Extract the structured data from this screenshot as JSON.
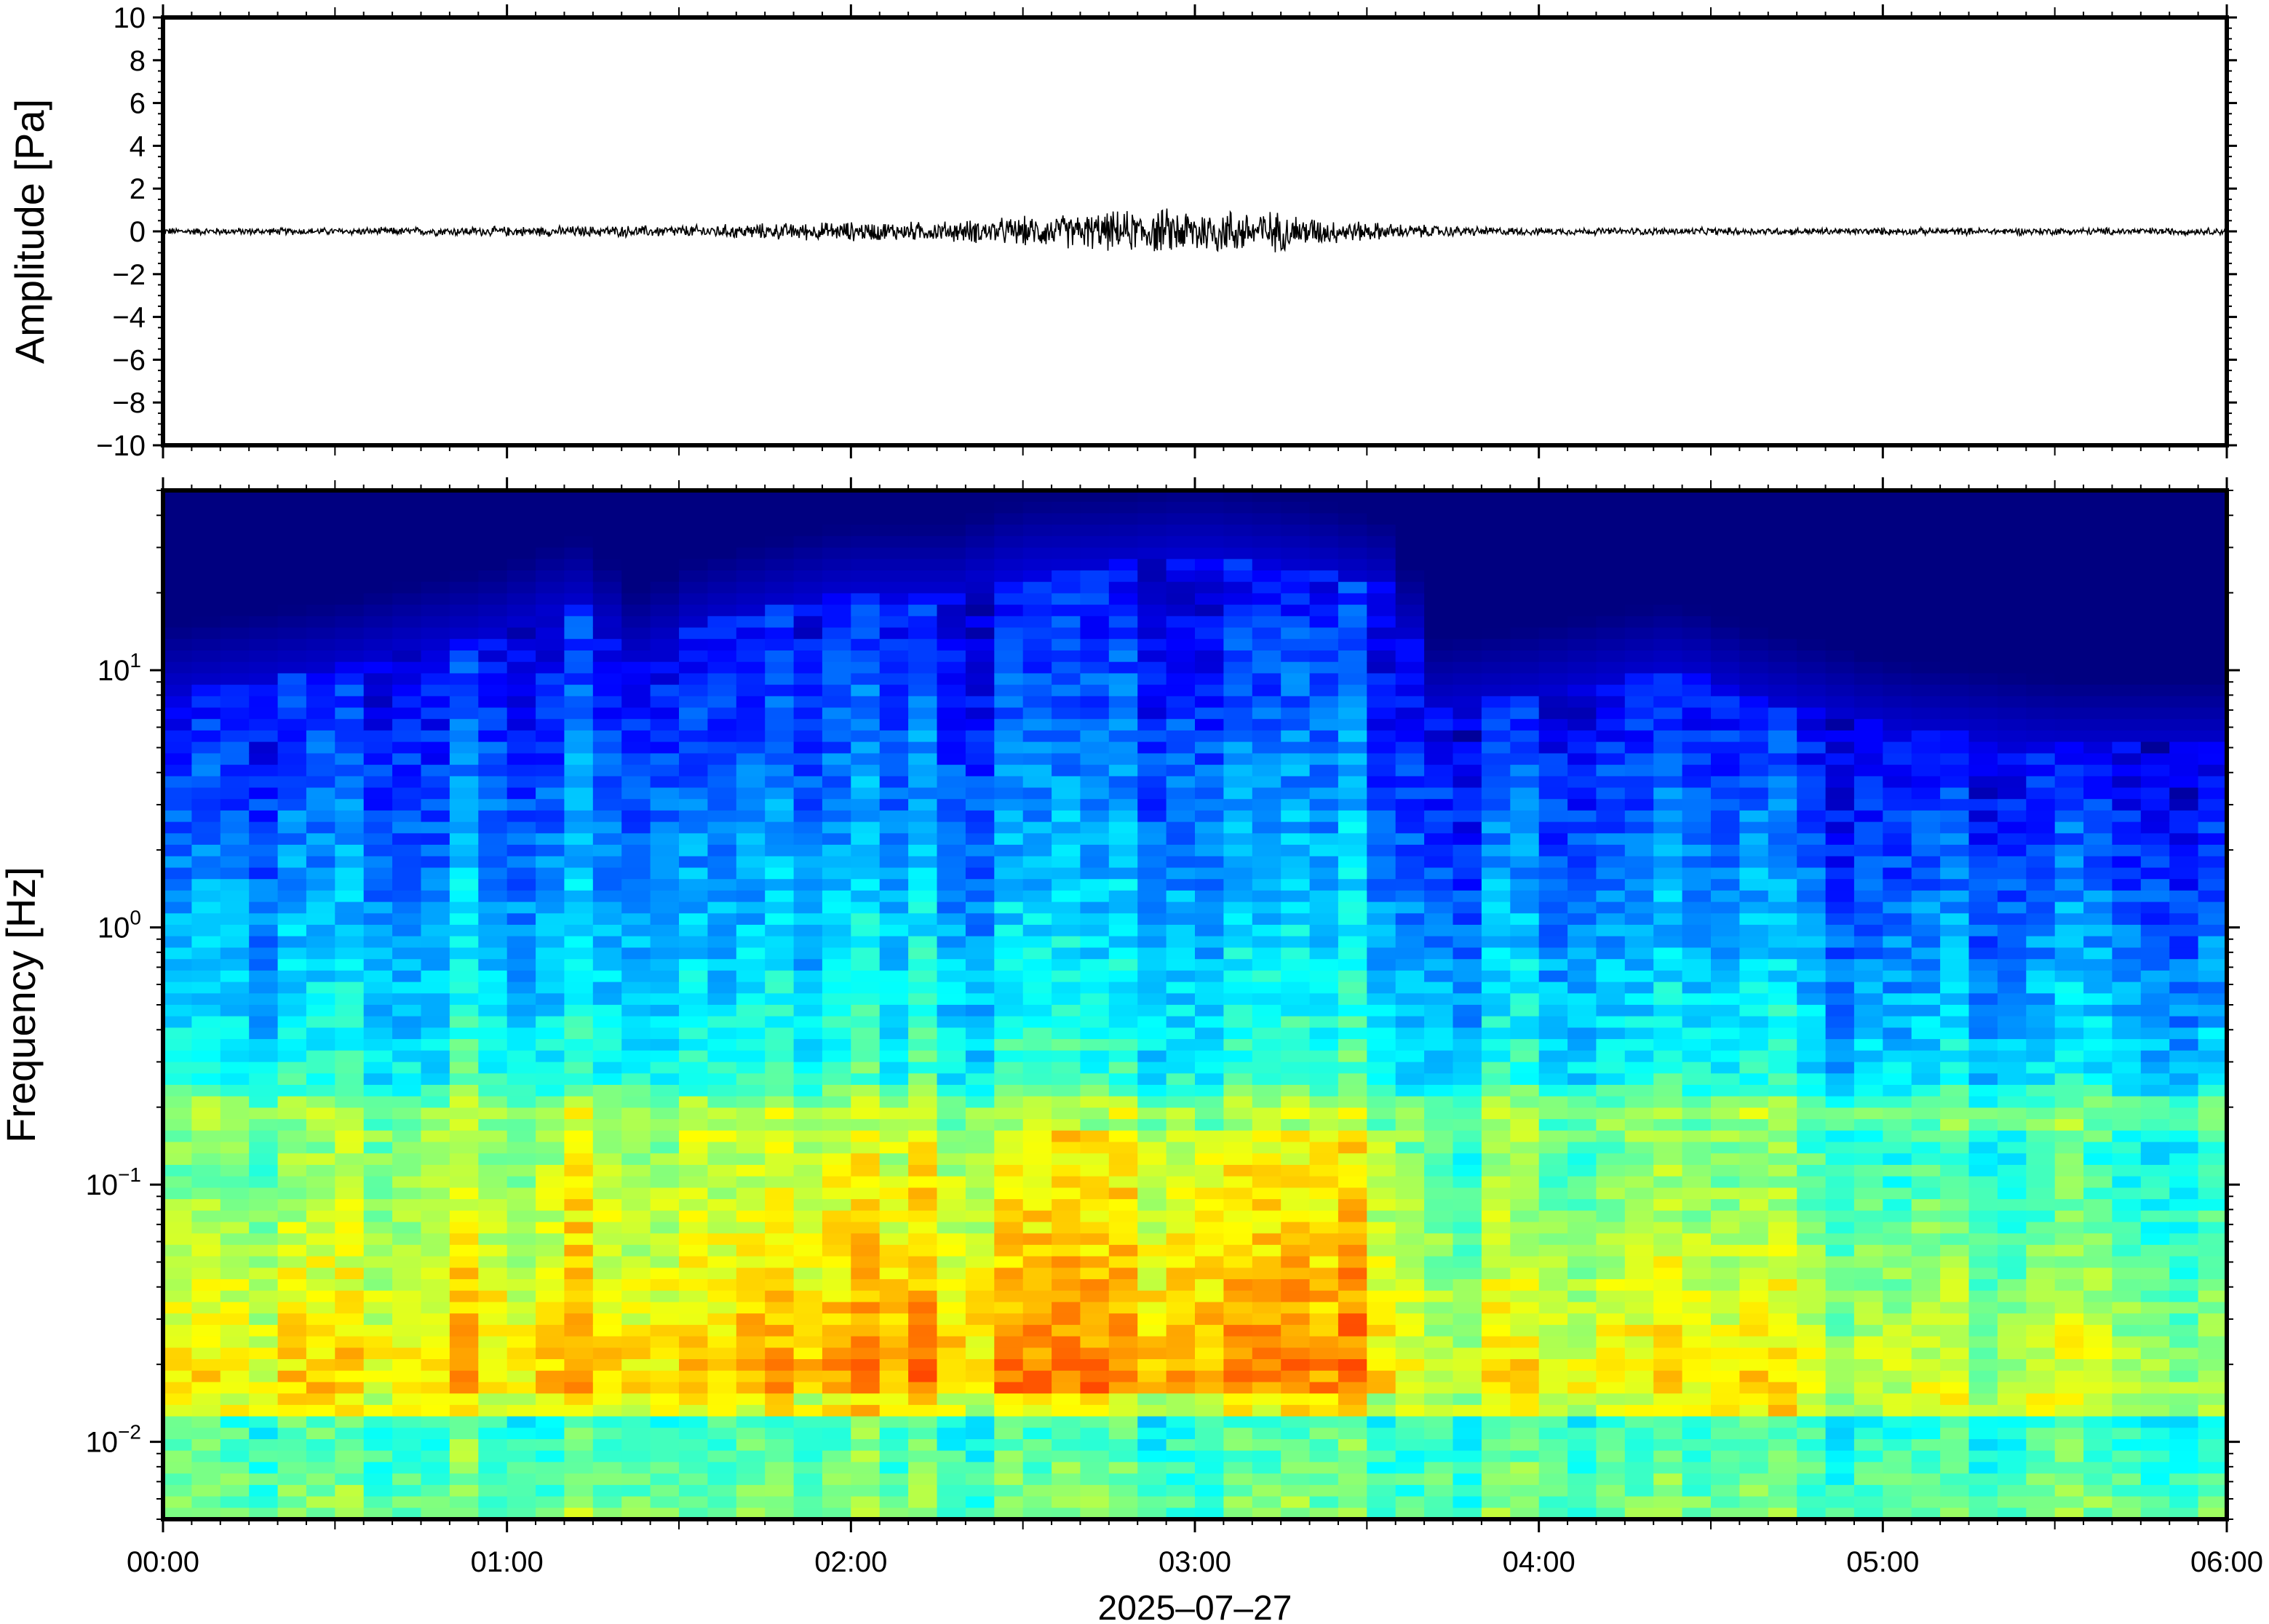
{
  "figure": {
    "date_label": "2025‒07‒27"
  },
  "chart_data": [
    {
      "type": "line",
      "name": "waveform",
      "ylabel": "Amplitude [Pa]",
      "xlabel": "",
      "ylim": [
        -10,
        10
      ],
      "y_tick_labels": [
        "10",
        "8",
        "6",
        "4",
        "2",
        "0",
        "−2",
        "−4",
        "−6",
        "−8",
        "−10"
      ],
      "y_ticks": [
        10,
        8,
        6,
        4,
        2,
        0,
        -2,
        -4,
        -6,
        -8,
        -10
      ],
      "x_range_hours": [
        0,
        6
      ],
      "envelope": {
        "x_hours": [
          0.0,
          0.5,
          1.0,
          1.5,
          2.0,
          2.25,
          2.5,
          2.75,
          3.0,
          3.2,
          3.4,
          3.6,
          3.8,
          4.0,
          4.5,
          5.0,
          5.5,
          6.0
        ],
        "amplitude": [
          0.15,
          0.15,
          0.2,
          0.25,
          0.4,
          0.4,
          0.6,
          0.8,
          1.0,
          0.9,
          0.5,
          0.3,
          0.2,
          0.15,
          0.15,
          0.15,
          0.15,
          0.15
        ]
      },
      "grid": false
    },
    {
      "type": "heatmap",
      "name": "spectrogram",
      "ylabel": "Frequency [Hz]",
      "xlabel": "2025‒07‒27",
      "y_scale": "log",
      "ylim": [
        0.005,
        50
      ],
      "y_tick_labels": [
        {
          "base": "10",
          "exp": "1",
          "value": 10
        },
        {
          "base": "10",
          "exp": "0",
          "value": 1
        },
        {
          "base": "10",
          "exp": "−1",
          "value": 0.1
        },
        {
          "base": "10",
          "exp": "−2",
          "value": 0.01
        }
      ],
      "x_tick_labels": [
        "00:00",
        "01:00",
        "02:00",
        "03:00",
        "04:00",
        "05:00",
        "06:00"
      ],
      "x_ticks_hours": [
        0,
        1,
        2,
        3,
        4,
        5,
        6
      ],
      "colormap": "jet",
      "activity_profile": {
        "x_hours": [
          0.0,
          0.5,
          1.0,
          1.2,
          1.4,
          1.5,
          2.0,
          2.3,
          2.5,
          2.8,
          3.0,
          3.3,
          3.6,
          3.65,
          4.0,
          4.4,
          4.6,
          5.0,
          5.5,
          6.0
        ],
        "upper_freq_hz": [
          8,
          10,
          14,
          18,
          10,
          14,
          20,
          20,
          25,
          26,
          28,
          25,
          20,
          7,
          8,
          10,
          8,
          6,
          5,
          5
        ]
      },
      "grid": false
    }
  ]
}
